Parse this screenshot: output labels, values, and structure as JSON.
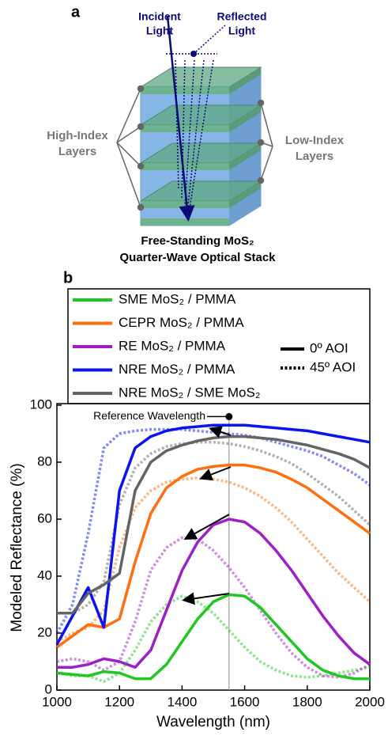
{
  "panel_a": {
    "label": "a",
    "incident_label": [
      "Incident",
      "Light"
    ],
    "reflected_label": [
      "Reflected",
      "Light"
    ],
    "high_index_label": [
      "High-Index",
      "Layers"
    ],
    "low_index_label": [
      "Low-Index",
      "Layers"
    ],
    "caption": [
      "Free-Standing MoS₂",
      "Quarter-Wave Optical Stack"
    ]
  },
  "chart_data": {
    "type": "line",
    "panel_label": "b",
    "x_label": "Wavelength (nm)",
    "y_label": "Modeled Reflectance (%)",
    "x": [
      1000,
      1050,
      1100,
      1150,
      1200,
      1250,
      1300,
      1350,
      1400,
      1450,
      1500,
      1550,
      1600,
      1650,
      1700,
      1750,
      1800,
      1850,
      1900,
      1950,
      2000
    ],
    "xlim": [
      1000,
      2000
    ],
    "xticks": [
      1000,
      1200,
      1400,
      1600,
      1800,
      2000
    ],
    "ylim": [
      0,
      100
    ],
    "yticks": [
      0,
      20,
      40,
      60,
      80,
      100
    ],
    "styles": [
      {
        "name": "0º AOI",
        "dash": "solid"
      },
      {
        "name": "45º AOI",
        "dash": "dotted"
      }
    ],
    "series": [
      {
        "name": "SME MoS₂ / PMMA",
        "color": "#1ec81e",
        "values": [
          6,
          5.5,
          5,
          6.5,
          6,
          4,
          4,
          9,
          17,
          25,
          31,
          33.5,
          33,
          29,
          23,
          17,
          11,
          7,
          5,
          4,
          4
        ],
        "values_45": [
          6,
          5,
          5,
          3,
          6,
          14,
          24,
          30,
          33,
          31,
          27,
          21,
          15,
          10,
          7,
          5,
          4.5,
          5,
          6,
          7,
          8
        ]
      },
      {
        "name": "CEPR MoS₂ / PMMA",
        "color": "#ff6e0f",
        "values": [
          15,
          19,
          23,
          22,
          25,
          45,
          62,
          71,
          75,
          77.5,
          78.5,
          79,
          79,
          78,
          76.5,
          74,
          71,
          67,
          63,
          59,
          55
        ],
        "values_45": [
          17,
          20,
          22,
          28,
          50,
          64,
          70,
          73,
          74,
          74.5,
          74,
          73,
          71,
          68,
          64,
          59,
          53,
          47,
          41,
          36,
          31
        ]
      },
      {
        "name": "RE MoS₂ / PMMA",
        "color": "#a01ec8",
        "values": [
          8,
          8,
          9,
          11,
          10,
          8,
          14,
          28,
          42,
          52,
          58,
          60,
          59,
          55,
          49,
          42,
          34,
          26,
          19,
          13,
          9
        ],
        "values_45": [
          10,
          11,
          10,
          7,
          10,
          24,
          42,
          50,
          53.5,
          53,
          49,
          43,
          36,
          28,
          20,
          13,
          8,
          5,
          4.5,
          6,
          9
        ]
      },
      {
        "name": "NRE MoS₂ / PMMA",
        "color": "#0a14f0",
        "values": [
          16,
          26,
          36,
          22,
          70,
          85,
          89,
          91,
          92,
          92.5,
          93,
          93,
          93,
          92.5,
          92,
          91.5,
          91,
          90,
          89,
          88,
          87
        ],
        "values_45": [
          20,
          30,
          55,
          85,
          90,
          91,
          91.5,
          91.5,
          91.5,
          91,
          90.5,
          90,
          89.5,
          88.5,
          87,
          85.5,
          84,
          82,
          79,
          76,
          72
        ]
      },
      {
        "name": "NRE MoS₂ / SME MoS₂",
        "color": "#646464",
        "values": [
          27,
          27,
          34,
          37,
          41,
          70,
          80,
          84,
          86,
          87.5,
          88.5,
          89,
          89,
          88.5,
          88,
          87,
          86,
          84.5,
          83,
          81,
          78
        ],
        "values_45": [
          27,
          27,
          30,
          38,
          65,
          78,
          83,
          85.5,
          86.5,
          87,
          87,
          86.5,
          85.5,
          84,
          82,
          79.5,
          76,
          72,
          68,
          63,
          58
        ]
      }
    ],
    "reference": {
      "label": "Reference Wavelength",
      "x": 1550,
      "y": 96
    }
  }
}
